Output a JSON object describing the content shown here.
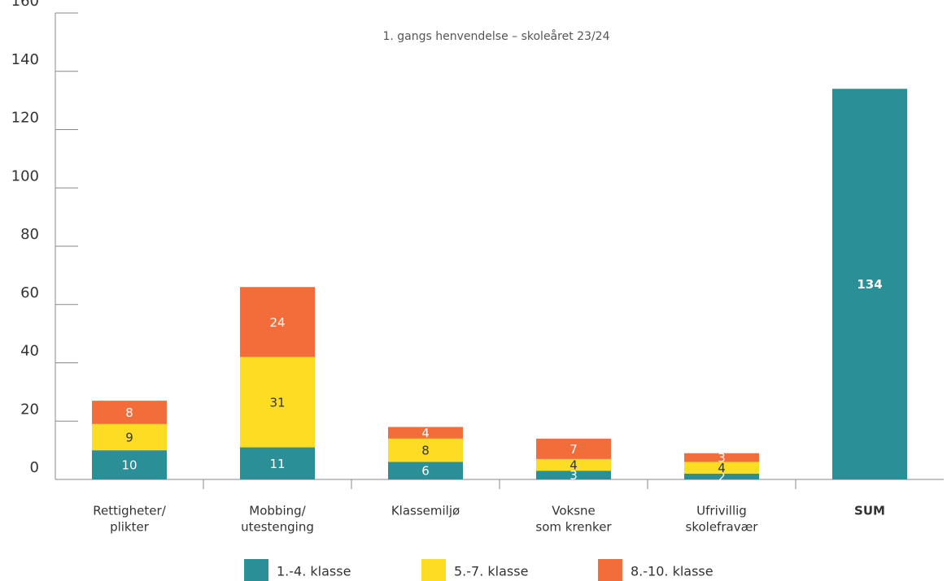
{
  "chart_data": {
    "type": "stacked_bar",
    "title": "1. gangs henvendelse – skoleåret 23/24",
    "categories": [
      [
        "Rettigheter/",
        "plikter"
      ],
      [
        "Mobbing/",
        "utestenging"
      ],
      [
        "Klassemiljø"
      ],
      [
        "Voksne",
        "som krenker"
      ],
      [
        "Ufrivillig",
        "skolefravær"
      ],
      [
        "SUM"
      ]
    ],
    "series": [
      {
        "name": "1.-4. klasse",
        "color": "#2a8f96",
        "values": [
          10,
          11,
          6,
          3,
          2,
          134
        ]
      },
      {
        "name": "5.-7. klasse",
        "color": "#fddc24",
        "values": [
          9,
          31,
          8,
          4,
          4,
          null
        ]
      },
      {
        "name": "8.-10. klasse",
        "color": "#f26d3a",
        "values": [
          8,
          24,
          4,
          7,
          3,
          null
        ]
      }
    ],
    "ylim": [
      0,
      160
    ],
    "yticks": [
      0,
      20,
      40,
      60,
      80,
      100,
      120,
      140,
      160
    ]
  }
}
